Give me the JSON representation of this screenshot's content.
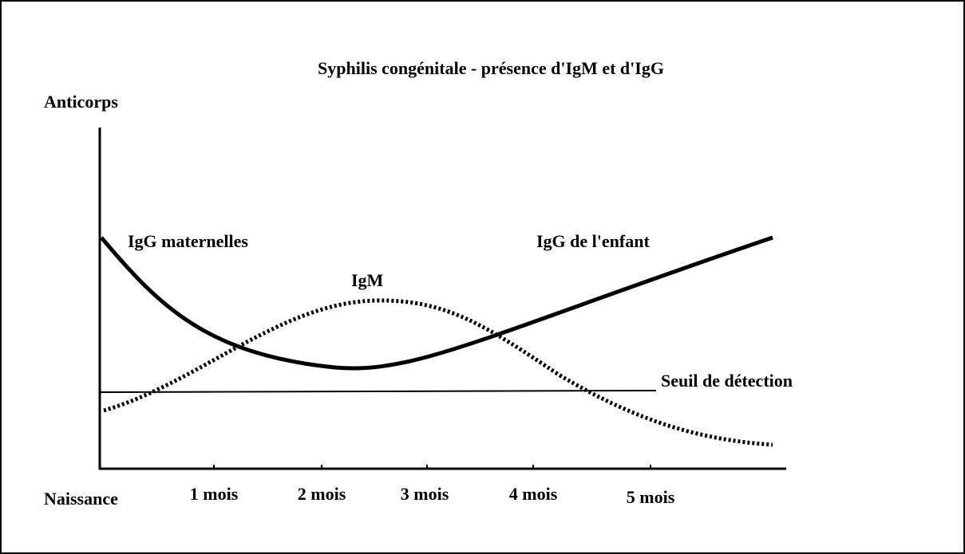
{
  "title": "Syphilis congénitale - présence d'IgM et d'IgG",
  "y_axis_label": "Anticorps",
  "x_labels": [
    "Naissance",
    "1 mois",
    "2 mois",
    "3 mois",
    "4 mois",
    "5 mois"
  ],
  "curves": [
    {
      "label": "IgG maternelles"
    },
    {
      "label": "IgM"
    },
    {
      "label": "IgG de l'enfant"
    }
  ],
  "threshold_label": "Seuil de détection"
}
